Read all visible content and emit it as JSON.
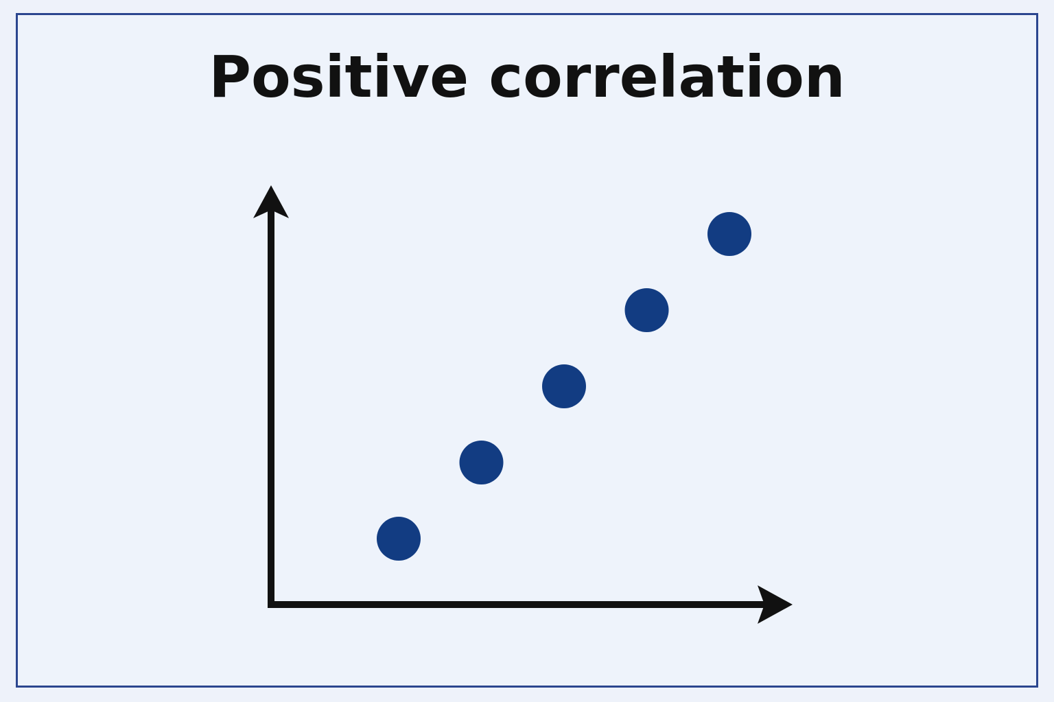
{
  "chart_data": {
    "type": "scatter",
    "title": "Positive correlation",
    "xlabel": "",
    "ylabel": "",
    "grid": false,
    "legend": "none",
    "points": [
      {
        "x": 1,
        "y": 1
      },
      {
        "x": 2,
        "y": 2
      },
      {
        "x": 3,
        "y": 3
      },
      {
        "x": 4,
        "y": 4
      },
      {
        "x": 5,
        "y": 5
      }
    ],
    "point_color": "#123c82",
    "axis_color": "#111111"
  },
  "frame": {
    "border_color": "#2b468f",
    "background": "#eef3fb"
  }
}
